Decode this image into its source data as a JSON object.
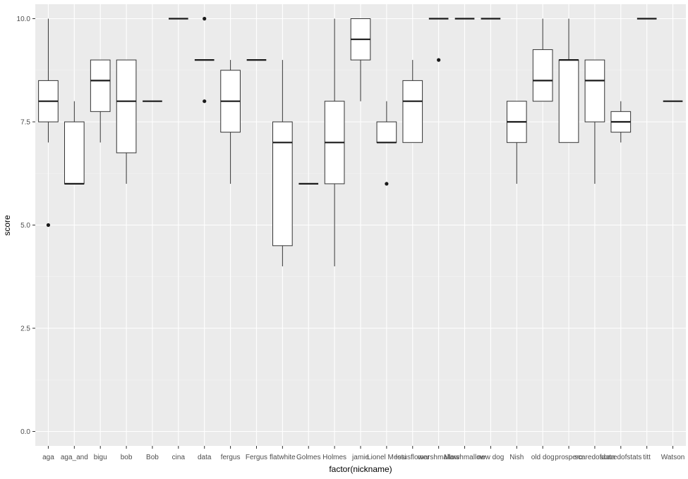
{
  "chart_data": {
    "type": "boxplot",
    "title": "",
    "xlabel": "factor(nickname)",
    "ylabel": "score",
    "ylim": [
      -0.35,
      10.35
    ],
    "y_ticks": [
      0,
      2.5,
      5,
      7.5,
      10
    ],
    "y_tick_labels": [
      "0.0",
      "2.5",
      "5.0",
      "7.5",
      "10.0"
    ],
    "grid": true,
    "background": "#ebebeb",
    "grid_major_color": "#ffffff",
    "box_fill": "#ffffff",
    "box_stroke": "#333333",
    "categories": [
      "aga",
      "aga_and",
      "bigu",
      "bob",
      "Bob",
      "cina",
      "data",
      "fergus",
      "Fergus",
      "flatwhite",
      "Golmes",
      "Holmes",
      "jamie",
      "Lionel Messi",
      "lotusflower",
      "marshmallow",
      "Marshmallow",
      "new dog",
      "Nish",
      "old dog",
      "prospero",
      "scaredofdata",
      "scaredofstats",
      "titt",
      "Watson"
    ],
    "boxes": [
      {
        "name": "aga",
        "lower_whisker": 7,
        "q1": 7.5,
        "median": 8,
        "q3": 8.5,
        "upper_whisker": 10,
        "outliers": [
          5
        ]
      },
      {
        "name": "aga_and",
        "lower_whisker": 6,
        "q1": 6,
        "median": 6,
        "q3": 7.5,
        "upper_whisker": 8,
        "outliers": []
      },
      {
        "name": "bigu",
        "lower_whisker": 7,
        "q1": 7.75,
        "median": 8.5,
        "q3": 9,
        "upper_whisker": 9,
        "outliers": []
      },
      {
        "name": "bob",
        "lower_whisker": 6,
        "q1": 6.75,
        "median": 8,
        "q3": 9,
        "upper_whisker": 9,
        "outliers": []
      },
      {
        "name": "Bob",
        "lower_whisker": 8,
        "q1": 8,
        "median": 8,
        "q3": 8,
        "upper_whisker": 8,
        "outliers": []
      },
      {
        "name": "cina",
        "lower_whisker": 10,
        "q1": 10,
        "median": 10,
        "q3": 10,
        "upper_whisker": 10,
        "outliers": []
      },
      {
        "name": "data",
        "lower_whisker": 9,
        "q1": 9,
        "median": 9,
        "q3": 9,
        "upper_whisker": 9,
        "outliers": [
          10,
          8
        ]
      },
      {
        "name": "fergus",
        "lower_whisker": 6,
        "q1": 7.25,
        "median": 8,
        "q3": 8.75,
        "upper_whisker": 9,
        "outliers": []
      },
      {
        "name": "Fergus",
        "lower_whisker": 9,
        "q1": 9,
        "median": 9,
        "q3": 9,
        "upper_whisker": 9,
        "outliers": []
      },
      {
        "name": "flatwhite",
        "lower_whisker": 4,
        "q1": 4.5,
        "median": 7,
        "q3": 7.5,
        "upper_whisker": 9,
        "outliers": []
      },
      {
        "name": "Golmes",
        "lower_whisker": 6,
        "q1": 6,
        "median": 6,
        "q3": 6,
        "upper_whisker": 6,
        "outliers": []
      },
      {
        "name": "Holmes",
        "lower_whisker": 4,
        "q1": 6,
        "median": 7,
        "q3": 8,
        "upper_whisker": 10,
        "outliers": []
      },
      {
        "name": "jamie",
        "lower_whisker": 8,
        "q1": 9,
        "median": 9.5,
        "q3": 10,
        "upper_whisker": 10,
        "outliers": []
      },
      {
        "name": "Lionel Messi",
        "lower_whisker": 7,
        "q1": 7,
        "median": 7,
        "q3": 7.5,
        "upper_whisker": 8,
        "outliers": [
          6
        ]
      },
      {
        "name": "lotusflower",
        "lower_whisker": 7,
        "q1": 7,
        "median": 8,
        "q3": 8.5,
        "upper_whisker": 9,
        "outliers": []
      },
      {
        "name": "marshmallow",
        "lower_whisker": 10,
        "q1": 10,
        "median": 10,
        "q3": 10,
        "upper_whisker": 10,
        "outliers": [
          9
        ]
      },
      {
        "name": "Marshmallow",
        "lower_whisker": 10,
        "q1": 10,
        "median": 10,
        "q3": 10,
        "upper_whisker": 10,
        "outliers": []
      },
      {
        "name": "new dog",
        "lower_whisker": 10,
        "q1": 10,
        "median": 10,
        "q3": 10,
        "upper_whisker": 10,
        "outliers": []
      },
      {
        "name": "Nish",
        "lower_whisker": 6,
        "q1": 7,
        "median": 7.5,
        "q3": 8,
        "upper_whisker": 8,
        "outliers": []
      },
      {
        "name": "old dog",
        "lower_whisker": 8,
        "q1": 8,
        "median": 8.5,
        "q3": 9.25,
        "upper_whisker": 10,
        "outliers": []
      },
      {
        "name": "prospero",
        "lower_whisker": 7,
        "q1": 7,
        "median": 9,
        "q3": 9,
        "upper_whisker": 10,
        "outliers": []
      },
      {
        "name": "scaredofdata",
        "lower_whisker": 6,
        "q1": 7.5,
        "median": 8.5,
        "q3": 9,
        "upper_whisker": 9,
        "outliers": []
      },
      {
        "name": "scaredofstats",
        "lower_whisker": 7,
        "q1": 7.25,
        "median": 7.5,
        "q3": 7.75,
        "upper_whisker": 8,
        "outliers": []
      },
      {
        "name": "titt",
        "lower_whisker": 10,
        "q1": 10,
        "median": 10,
        "q3": 10,
        "upper_whisker": 10,
        "outliers": []
      },
      {
        "name": "Watson",
        "lower_whisker": 8,
        "q1": 8,
        "median": 8,
        "q3": 8,
        "upper_whisker": 8,
        "outliers": []
      }
    ]
  }
}
